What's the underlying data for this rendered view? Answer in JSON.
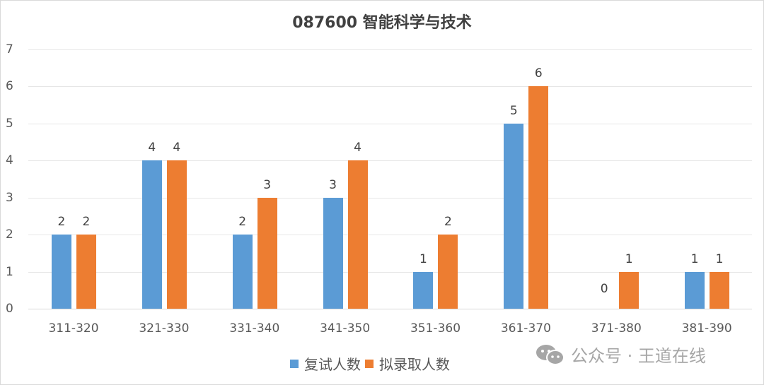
{
  "chart_data": {
    "type": "bar",
    "title": "087600 智能科学与技术",
    "categories": [
      "311-320",
      "321-330",
      "331-340",
      "341-350",
      "351-360",
      "361-370",
      "371-380",
      "381-390"
    ],
    "series": [
      {
        "name": "复试人数",
        "color": "#5b9bd5",
        "values": [
          2,
          4,
          2,
          3,
          1,
          5,
          0,
          1
        ]
      },
      {
        "name": "拟录取人数",
        "color": "#ed7d31",
        "values": [
          2,
          4,
          3,
          4,
          2,
          6,
          1,
          1
        ]
      }
    ],
    "xlabel": "",
    "ylabel": "",
    "ylim": [
      0,
      7
    ],
    "yticks": [
      0,
      1,
      2,
      3,
      4,
      5,
      6,
      7
    ],
    "grid": true,
    "legend_position": "bottom",
    "data_labels": true
  },
  "watermark": {
    "text": "公众号 · 王道在线",
    "icon": "wechat-icon"
  }
}
